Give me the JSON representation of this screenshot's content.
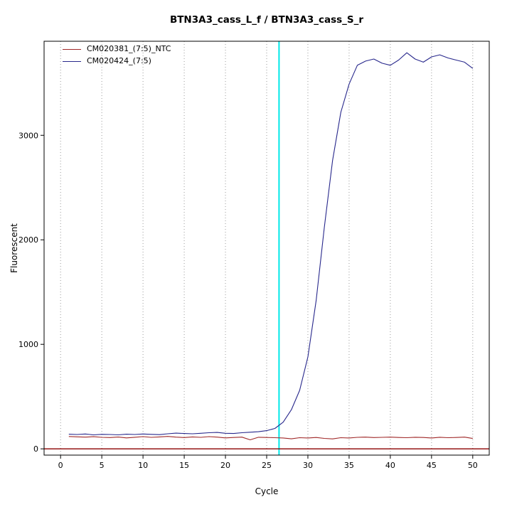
{
  "title": "BTN3A3_cass_L_f / BTN3A3_cass_S_r",
  "chart_data": {
    "type": "line",
    "title": "BTN3A3_cass_L_f / BTN3A3_cass_S_r",
    "xlabel": "Cycle",
    "ylabel": "Fluorescent",
    "xlim": [
      -2,
      52
    ],
    "ylim": [
      -60,
      3900
    ],
    "x_ticks": [
      0,
      5,
      10,
      15,
      20,
      25,
      30,
      35,
      40,
      45,
      50
    ],
    "y_ticks": [
      0,
      1000,
      2000,
      3000
    ],
    "grid": "vertical-dotted",
    "grid_color": "#9a9a9a",
    "legend_position": "top-left",
    "threshold_line": {
      "axis": "x",
      "value": 26.5,
      "color": "#00e8e8"
    },
    "baseline": {
      "axis": "y",
      "value": 0,
      "color": "#8b0000"
    },
    "x": [
      1,
      2,
      3,
      4,
      5,
      6,
      7,
      8,
      9,
      10,
      11,
      12,
      13,
      14,
      15,
      16,
      17,
      18,
      19,
      20,
      21,
      22,
      23,
      24,
      25,
      26,
      27,
      28,
      29,
      30,
      31,
      32,
      33,
      34,
      35,
      36,
      37,
      38,
      39,
      40,
      41,
      42,
      43,
      44,
      45,
      46,
      47,
      48,
      49,
      50
    ],
    "series": [
      {
        "name": "CM020381_(7:5)_NTC",
        "color": "#a02828",
        "values": [
          118,
          115,
          112,
          116,
          110,
          108,
          113,
          105,
          111,
          117,
          110,
          114,
          119,
          112,
          108,
          114,
          110,
          117,
          112,
          105,
          109,
          112,
          86,
          111,
          109,
          107,
          104,
          96,
          107,
          104,
          109,
          100,
          95,
          107,
          104,
          110,
          112,
          108,
          110,
          112,
          109,
          107,
          111,
          109,
          104,
          111,
          107,
          109,
          112,
          99
        ]
      },
      {
        "name": "CM020424_(7:5)",
        "color": "#28288c",
        "values": [
          140,
          137,
          142,
          134,
          139,
          137,
          134,
          140,
          137,
          142,
          139,
          136,
          144,
          150,
          147,
          144,
          149,
          154,
          157,
          149,
          147,
          154,
          159,
          164,
          174,
          195,
          255,
          375,
          560,
          880,
          1420,
          2120,
          2760,
          3220,
          3490,
          3670,
          3710,
          3730,
          3690,
          3670,
          3720,
          3790,
          3730,
          3700,
          3750,
          3770,
          3740,
          3720,
          3700,
          3640
        ]
      }
    ]
  }
}
